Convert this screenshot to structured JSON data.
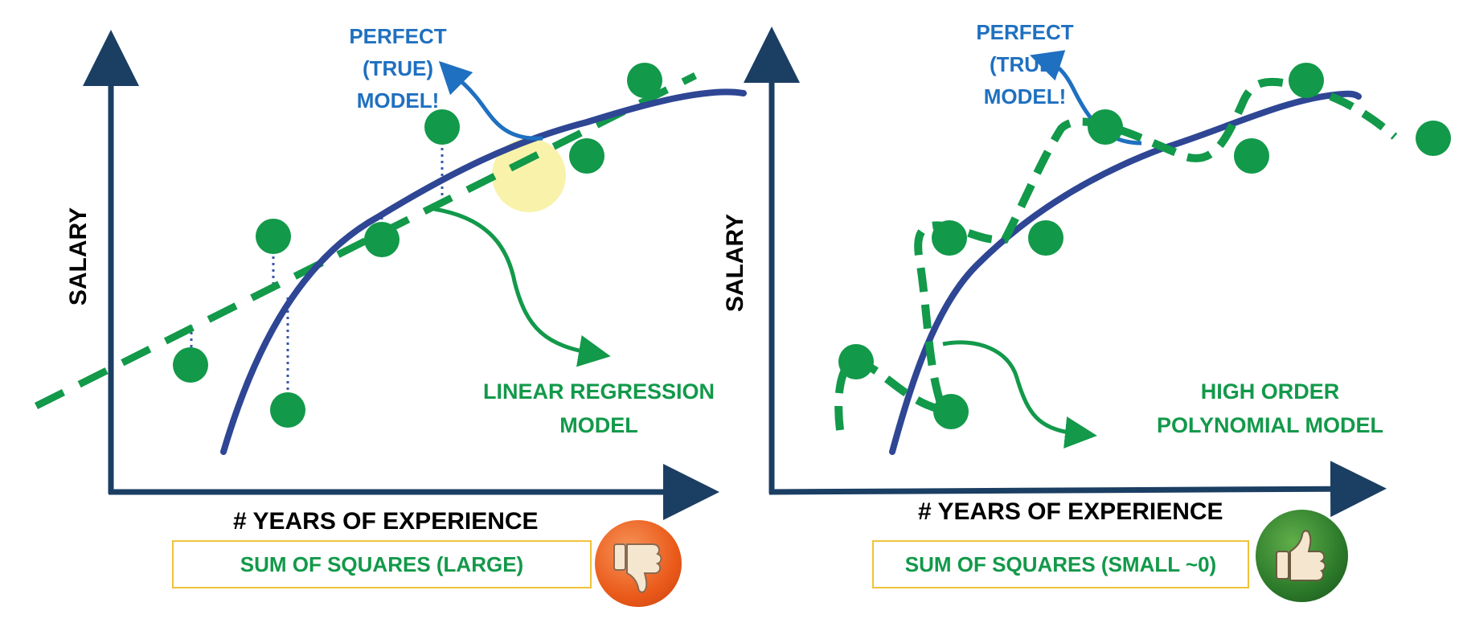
{
  "left": {
    "y_axis_label": "SALARY",
    "x_axis_label": "# YEARS OF EXPERIENCE",
    "true_model_label": [
      "PERFECT",
      "(TRUE)",
      "MODEL!"
    ],
    "fit_model_label": [
      "LINEAR REGRESSION",
      "MODEL"
    ],
    "sum_of_squares": "SUM OF SQUARES (LARGE)",
    "verdict_icon": "thumbs-down-icon"
  },
  "right": {
    "y_axis_label": "SALARY",
    "x_axis_label": "# YEARS OF EXPERIENCE",
    "true_model_label": [
      "PERFECT",
      "(TRUE)",
      "MODEL!"
    ],
    "fit_model_label": [
      "HIGH ORDER",
      "POLYNOMIAL MODEL"
    ],
    "sum_of_squares": "SUM OF SQUARES (SMALL ~0)",
    "verdict_icon": "thumbs-up-icon"
  },
  "colors": {
    "axis": "#1b3e63",
    "true_curve": "#2e4694",
    "fit_green": "#12994a",
    "label_blue": "#1f70c0",
    "box_border": "#f0c23a",
    "thumb_down": "#ea5a1a",
    "thumb_up": "#2c7a2a",
    "highlight": "#f5ee8f"
  }
}
